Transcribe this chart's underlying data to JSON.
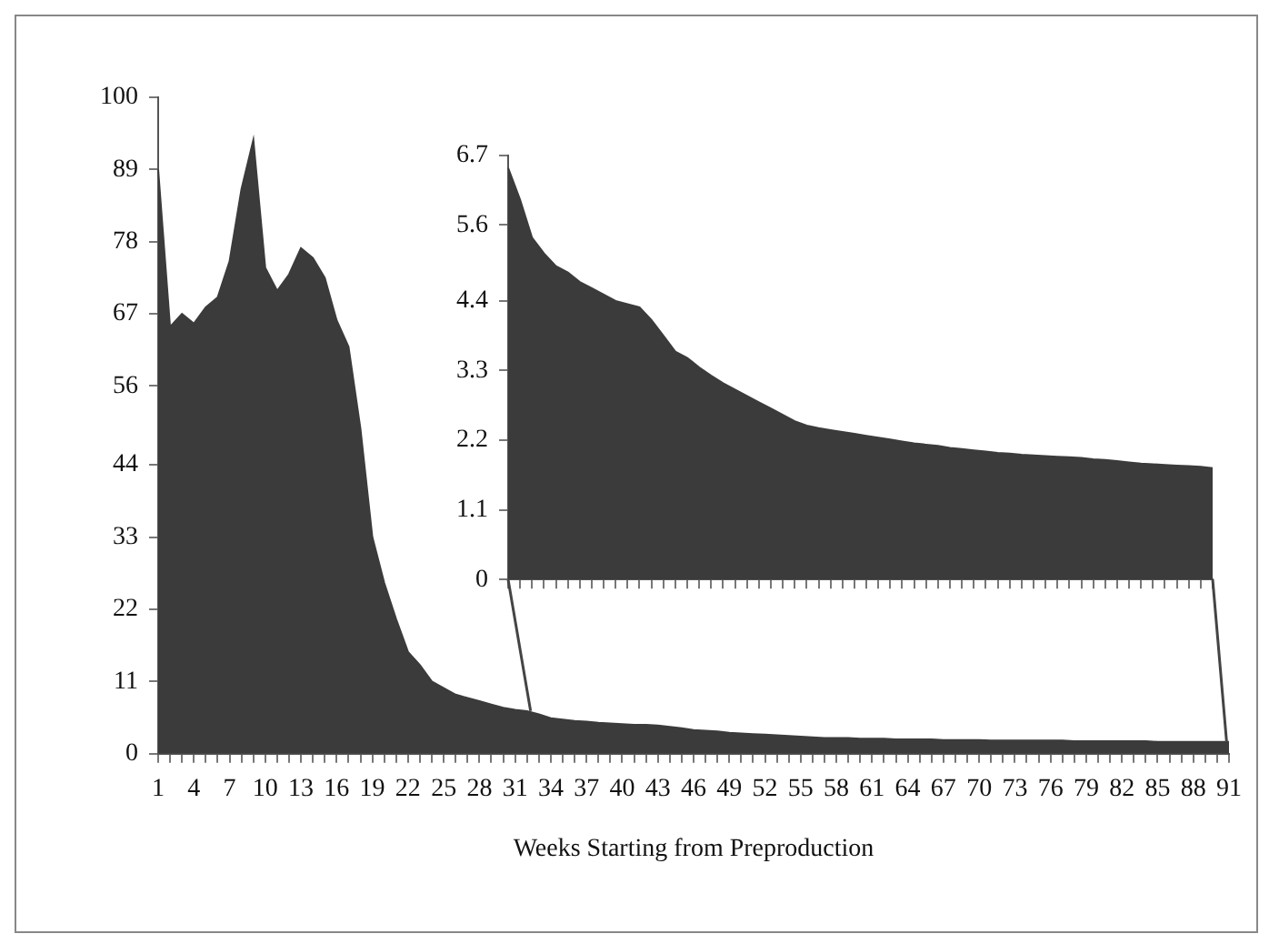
{
  "chart_data": [
    {
      "type": "area",
      "xlabel": "Weeks Starting from Preproduction",
      "categories": [
        "1",
        null,
        null,
        "4",
        null,
        null,
        "7",
        null,
        null,
        "10",
        null,
        null,
        "13",
        null,
        null,
        "16",
        null,
        null,
        "19",
        null,
        null,
        "22",
        null,
        null,
        "25",
        null,
        null,
        "28",
        null,
        null,
        "31",
        null,
        null,
        "34",
        null,
        null,
        "37",
        null,
        null,
        "40",
        null,
        null,
        "43",
        null,
        null,
        "46",
        null,
        null,
        "49",
        null,
        null,
        "52",
        null,
        null,
        "55",
        null,
        null,
        "58",
        null,
        null,
        "61",
        null,
        null,
        "64",
        null,
        null,
        "67",
        null,
        null,
        "70",
        null,
        null,
        "73",
        null,
        null,
        "76",
        null,
        null,
        "79",
        null,
        null,
        "82",
        null,
        null,
        "85",
        null,
        null,
        "88",
        null,
        null,
        "91"
      ],
      "series": [
        {
          "color": "#3b3b3b",
          "values": [
            89,
            65,
            67,
            65.5,
            68,
            69.5,
            75,
            86,
            93.5,
            74,
            70.5,
            73,
            77,
            75.5,
            72.5,
            66,
            62,
            49.5,
            33,
            26,
            20.5,
            15.5,
            13.5,
            11,
            10,
            9,
            8.5,
            8,
            7.5,
            7,
            6.7,
            6.5,
            6,
            5.4,
            5.2,
            5,
            4.9,
            4.7,
            4.6,
            4.5,
            4.4,
            4.4,
            4.3,
            4.1,
            3.9,
            3.6,
            3.5,
            3.4,
            3.2,
            3.1,
            3,
            2.9,
            2.8,
            2.7,
            2.6,
            2.5,
            2.4,
            2.4,
            2.4,
            2.3,
            2.3,
            2.3,
            2.2,
            2.2,
            2.2,
            2.2,
            2.1,
            2.1,
            2.1,
            2.1,
            2,
            2,
            2,
            2,
            2,
            2,
            2,
            1.9,
            1.9,
            1.9,
            1.9,
            1.9,
            1.9,
            1.9,
            1.8,
            1.8,
            1.8,
            1.8,
            1.8,
            1.8,
            1.8
          ]
        }
      ],
      "ylim": [
        0,
        100
      ],
      "yticks": [
        0,
        11,
        22,
        33,
        44,
        56,
        67,
        78,
        89,
        100
      ],
      "grid": false,
      "legend": false
    },
    {
      "type": "area",
      "categories": [
        null,
        null,
        null,
        null,
        null,
        null,
        null,
        null,
        null,
        null,
        null,
        null,
        null,
        null,
        null,
        null,
        null,
        null,
        null,
        null,
        null,
        null,
        null,
        null,
        null,
        null,
        null,
        null,
        null,
        null,
        null,
        null,
        null,
        null,
        null,
        null,
        null,
        null,
        null,
        null,
        null,
        null,
        null,
        null,
        null,
        null,
        null,
        null,
        null,
        null,
        null,
        null,
        null,
        null,
        null,
        null,
        null,
        null,
        null,
        null
      ],
      "series": [
        {
          "color": "#3b3b3b",
          "values": [
            6.5,
            6.0,
            5.4,
            5.15,
            4.95,
            4.85,
            4.7,
            4.6,
            4.5,
            4.4,
            4.35,
            4.3,
            4.1,
            3.85,
            3.6,
            3.5,
            3.35,
            3.22,
            3.1,
            3.0,
            2.9,
            2.8,
            2.7,
            2.6,
            2.5,
            2.43,
            2.39,
            2.36,
            2.33,
            2.3,
            2.27,
            2.24,
            2.21,
            2.18,
            2.15,
            2.13,
            2.11,
            2.08,
            2.06,
            2.04,
            2.02,
            2.0,
            1.99,
            1.97,
            1.96,
            1.95,
            1.94,
            1.93,
            1.92,
            1.9,
            1.89,
            1.87,
            1.85,
            1.83,
            1.82,
            1.81,
            1.8,
            1.79,
            1.78,
            1.76
          ]
        }
      ],
      "ylim": [
        0,
        6.7
      ],
      "yticks": [
        0,
        1.1,
        2.2,
        3.3,
        4.4,
        5.6,
        6.7
      ],
      "tick_labels": "y",
      "grid": false,
      "legend": false
    }
  ]
}
